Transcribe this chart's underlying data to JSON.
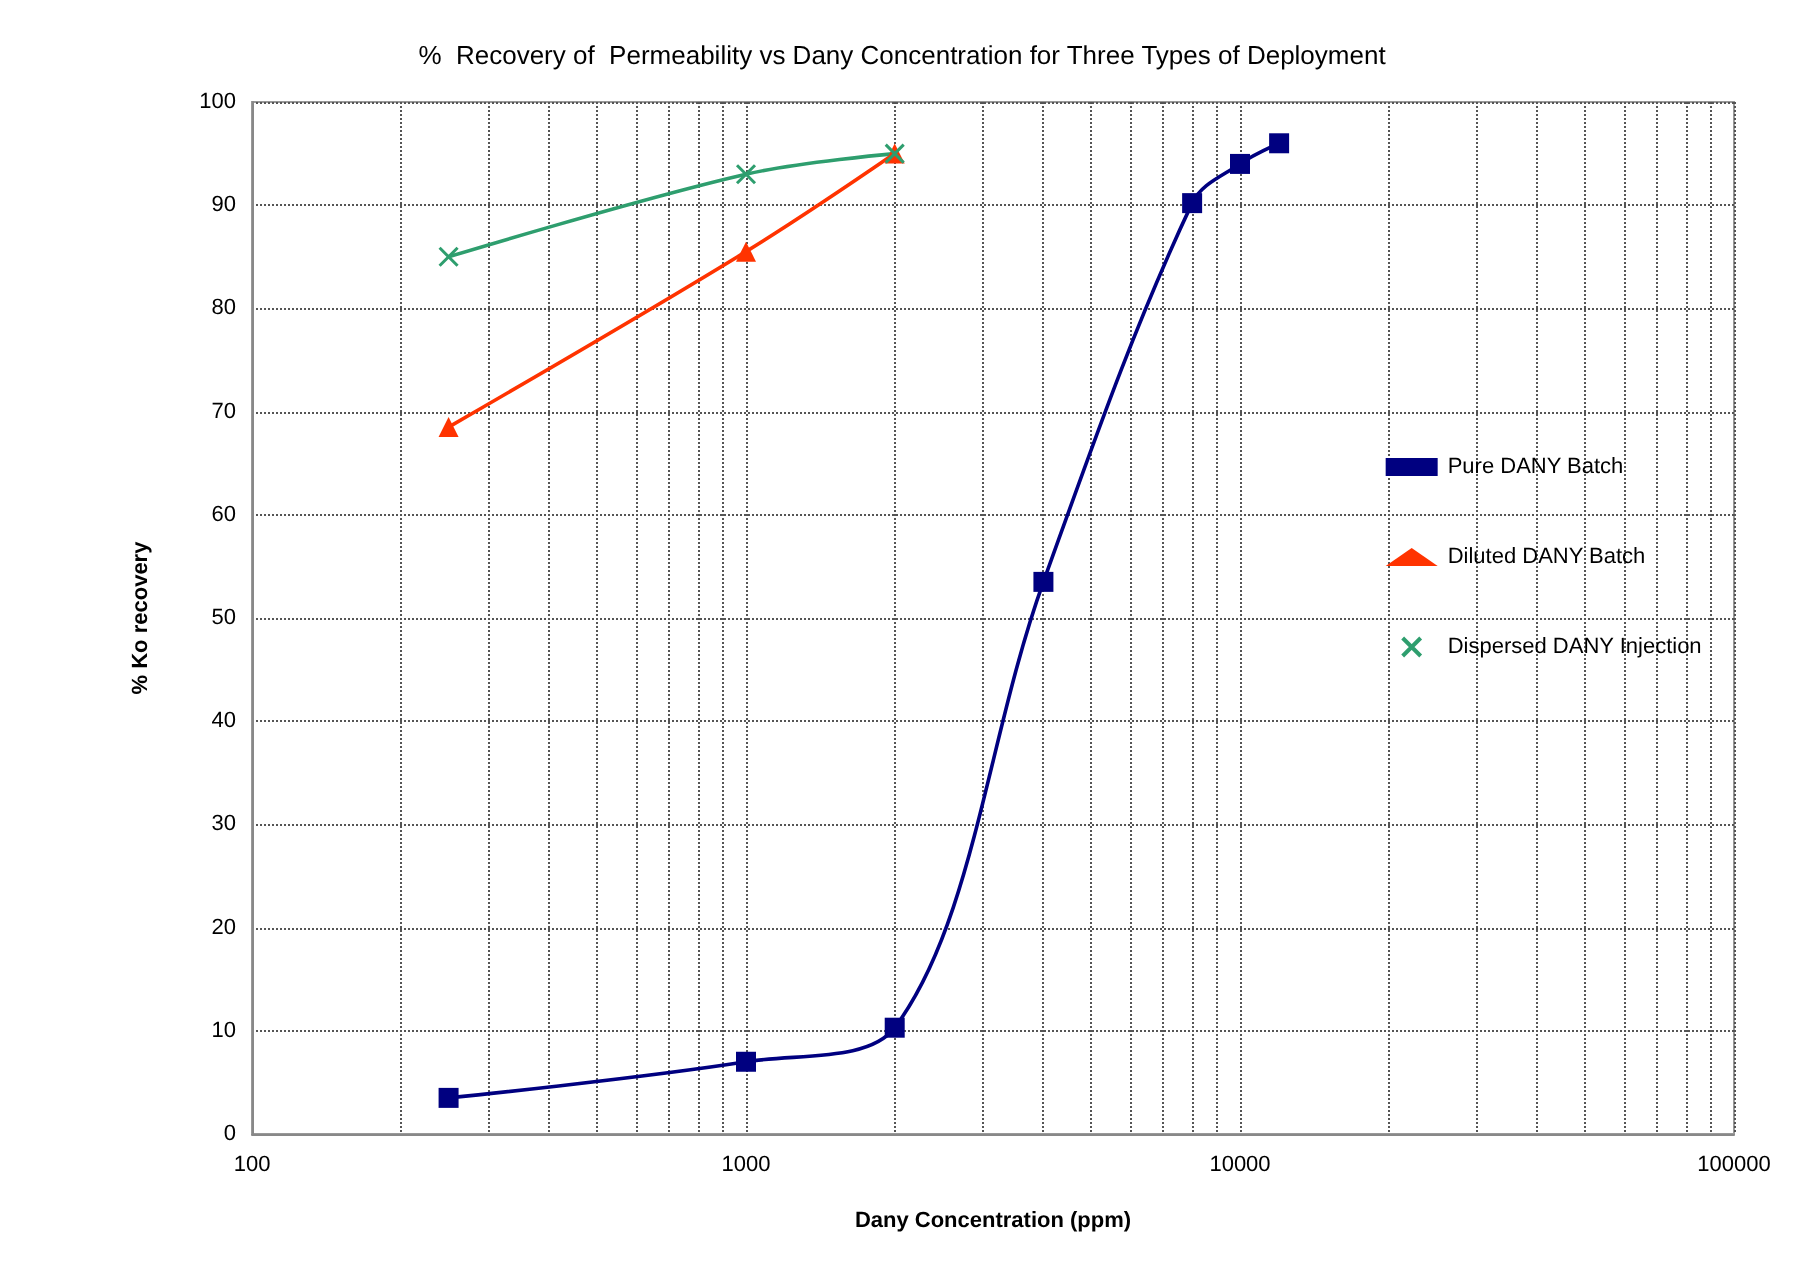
{
  "chart_data": {
    "type": "line",
    "title": "%  Recovery of  Permeability vs Dany Concentration for Three Types of Deployment",
    "xlabel": "Dany Concentration (ppm)",
    "ylabel": "% Ko recovery",
    "log": "x",
    "xlim": [
      100,
      100000
    ],
    "ylim": [
      0,
      100
    ],
    "xticks": [
      100,
      {
        "value": 200,
        "label": null
      },
      {
        "value": 300,
        "label": null
      },
      {
        "value": 400,
        "label": null
      },
      {
        "value": 500,
        "label": null
      },
      {
        "value": 600,
        "label": null
      },
      {
        "value": 700,
        "label": null
      },
      {
        "value": 800,
        "label": null
      },
      {
        "value": 900,
        "label": null
      },
      1000,
      {
        "value": 2000,
        "label": null
      },
      {
        "value": 3000,
        "label": null
      },
      {
        "value": 4000,
        "label": null
      },
      {
        "value": 5000,
        "label": null
      },
      {
        "value": 6000,
        "label": null
      },
      {
        "value": 7000,
        "label": null
      },
      {
        "value": 8000,
        "label": null
      },
      {
        "value": 9000,
        "label": null
      },
      10000,
      {
        "value": 20000,
        "label": null
      },
      {
        "value": 30000,
        "label": null
      },
      {
        "value": 40000,
        "label": null
      },
      {
        "value": 50000,
        "label": null
      },
      {
        "value": 60000,
        "label": null
      },
      {
        "value": 70000,
        "label": null
      },
      {
        "value": 80000,
        "label": null
      },
      {
        "value": 90000,
        "label": null
      },
      100000
    ],
    "yticks": [
      0,
      10,
      20,
      30,
      40,
      50,
      60,
      70,
      80,
      90,
      100
    ],
    "grid": true,
    "legend": "right",
    "line_style": "solid",
    "series": [
      {
        "name": "Pure DANY Batch",
        "color": "#000080",
        "marker": "square",
        "x": [
          250,
          1000,
          2000,
          4000,
          8000,
          10000,
          12000
        ],
        "values": [
          3.5,
          7,
          10.3,
          53.5,
          90.2,
          94,
          96
        ]
      },
      {
        "name": "Diluted DANY Batch",
        "color": "#ff3300",
        "marker": "triangle",
        "x": [
          250,
          1000,
          2000
        ],
        "values": [
          68.5,
          85.5,
          95
        ]
      },
      {
        "name": "Dispersed DANY Injection",
        "color": "#2e9e6e",
        "marker": "cross",
        "x": [
          250,
          1000,
          2000
        ],
        "values": [
          85,
          93,
          95
        ]
      }
    ]
  }
}
